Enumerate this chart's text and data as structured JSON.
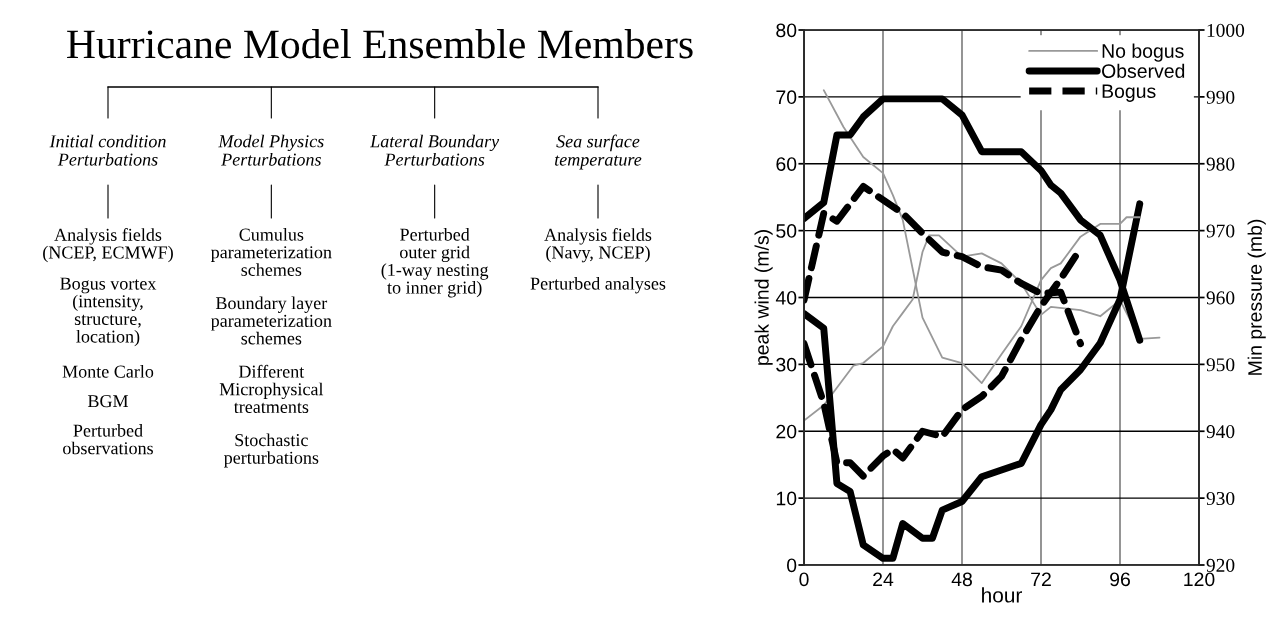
{
  "chart_data": [
    {
      "type": "other",
      "title": "Hurricane Model Ensemble Members",
      "categories": [
        "Initial condition\nPerturbations",
        "Model Physics\nPerturbations",
        "Lateral Boundary\nPerturbations",
        "Sea surface\ntemperature"
      ],
      "annotations": [
        "Analysis fields\n(NCEP, ECMWF)\n\nBogus vortex\n(intensity,\nstructure,\nlocation)\n\nMonte Carlo\n\nBGM\n\nPerturbed\nobservations",
        "Cumulus\nparameterization\nschemes\n\nBoundary layer\nparameterization\nschemes\n\nDifferent\nMicrophysical\ntreatments\n\nStochastic\nperturbations",
        "Perturbed\nouter grid\n(1-way nesting\nto inner grid)",
        "Analysis fields\n(Navy, NCEP)\n\nPerturbed analyses"
      ]
    },
    {
      "type": "line",
      "xlabel": "hour",
      "ylabel": "peak wind (m/s)",
      "y2label": "Min pressure (mb)",
      "xlim": [
        0,
        120
      ],
      "xticks": [
        0,
        24,
        48,
        72,
        96,
        120
      ],
      "ylim": [
        0,
        80
      ],
      "yticks": [
        0,
        10,
        20,
        30,
        40,
        50,
        60,
        70,
        80
      ],
      "y2lim": [
        920,
        1000
      ],
      "y2ticks": [
        920,
        930,
        940,
        950,
        960,
        970,
        980,
        990,
        1000
      ],
      "grid": true,
      "legend": "top right",
      "series": [
        {
          "name": "No bogus",
          "color": "#999999",
          "line_style": "solid",
          "x": [
            0,
            6,
            15,
            18,
            24,
            27,
            30,
            33,
            36,
            38,
            41,
            48,
            54,
            60,
            66,
            72,
            75,
            84,
            90,
            96,
            102,
            108
          ],
          "values": [
            21.6,
            23.9,
            29.8,
            30.2,
            32.7,
            35.7,
            37.7,
            39.7,
            46.8,
            49.3,
            49.3,
            46.1,
            46.6,
            45.1,
            42.1,
            37.4,
            38.6,
            38.1,
            37.2,
            39.6,
            33.8,
            34
          ]
        },
        {
          "color": "#999999",
          "line_style": "solid",
          "axis": "y2",
          "x": [
            6,
            12,
            18,
            24,
            27,
            30,
            36,
            42,
            48,
            54,
            60,
            66,
            72,
            75,
            78,
            84,
            90,
            96,
            98,
            102
          ],
          "values": [
            991,
            985.5,
            981,
            978.6,
            975.3,
            971.6,
            957,
            951,
            950.2,
            947.2,
            951.5,
            955.7,
            962.6,
            964.4,
            965.1,
            969.1,
            971,
            971,
            972,
            972
          ]
        },
        {
          "name": "Observed",
          "color": "#000000",
          "line_style": "solid",
          "x": [
            0,
            6,
            10,
            14,
            18,
            24,
            27,
            30,
            36,
            39,
            42,
            48,
            54,
            60,
            66,
            72,
            75,
            78,
            84,
            90,
            96,
            102
          ],
          "values": [
            37.6,
            35.4,
            12.2,
            11,
            3,
            1,
            1,
            6.2,
            4,
            4,
            8.2,
            9.5,
            13.2,
            14.2,
            15.2,
            21,
            23.2,
            26.2,
            29.2,
            33.2,
            39.7,
            54
          ]
        },
        {
          "color": "#000000",
          "line_style": "solid",
          "axis": "y2",
          "x": [
            0,
            6,
            10,
            14,
            18,
            24,
            42,
            48,
            54,
            66,
            72,
            75,
            78,
            84,
            90,
            96,
            102
          ],
          "values": [
            971.8,
            974.2,
            984.3,
            984.3,
            987,
            989.7,
            989.7,
            987.3,
            981.8,
            981.8,
            979,
            976.8,
            975.6,
            971.6,
            969.3,
            962.6,
            953.6
          ]
        },
        {
          "name": "Bogus",
          "color": "#000000",
          "line_style": "dashed",
          "x": [
            0,
            6,
            10,
            14,
            18,
            24,
            27,
            30,
            36,
            42,
            48,
            54,
            60,
            66,
            72,
            78,
            84
          ],
          "values": [
            33.1,
            24.2,
            15.3,
            15.3,
            13.3,
            16.3,
            17.3,
            16,
            20,
            19.2,
            23.2,
            25.2,
            28.2,
            33.7,
            38.7,
            42.8,
            47.3
          ]
        },
        {
          "color": "#000000",
          "line_style": "dashed",
          "axis": "y2",
          "x": [
            0,
            6,
            10,
            18,
            24,
            30,
            36,
            42,
            48,
            54,
            60,
            66,
            72,
            78,
            84
          ],
          "values": [
            959.6,
            972.6,
            971.4,
            976.6,
            974.6,
            972.6,
            969.6,
            966.8,
            966.1,
            964.6,
            964.1,
            962.1,
            960.6,
            960.8,
            953.1
          ]
        }
      ]
    }
  ]
}
